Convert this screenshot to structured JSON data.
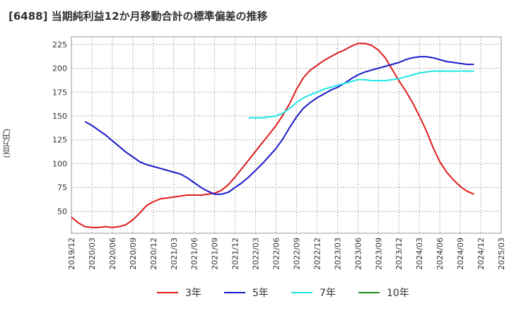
{
  "chart_data": {
    "type": "line",
    "title": "[6488]  当期純利益12か月移動合計の標準偏差の推移",
    "ylabel": "(百万円)",
    "xlabel": "",
    "ylim": [
      27,
      233
    ],
    "yticks": [
      50,
      75,
      100,
      125,
      150,
      175,
      200,
      225
    ],
    "xticks": [
      "2019/12",
      "2020/03",
      "2020/06",
      "2020/09",
      "2020/12",
      "2021/03",
      "2021/06",
      "2021/09",
      "2021/12",
      "2022/03",
      "2022/06",
      "2022/09",
      "2022/12",
      "2023/03",
      "2023/06",
      "2023/09",
      "2023/12",
      "2024/03",
      "2024/06",
      "2024/09",
      "2024/12",
      "2025/03"
    ],
    "grid": true,
    "legend_position": "bottom",
    "series": [
      {
        "name": "3年",
        "color": "#dd1c1c",
        "points": [
          [
            0,
            44
          ],
          [
            1,
            38
          ],
          [
            2,
            34
          ],
          [
            3,
            33
          ],
          [
            4,
            33
          ],
          [
            5,
            34
          ],
          [
            6,
            33
          ],
          [
            7,
            34
          ],
          [
            8,
            36
          ],
          [
            9,
            41
          ],
          [
            10,
            48
          ],
          [
            11,
            56
          ],
          [
            12,
            60
          ],
          [
            13,
            63
          ],
          [
            14,
            64
          ],
          [
            15,
            65
          ],
          [
            16,
            66
          ],
          [
            17,
            67
          ],
          [
            18,
            67
          ],
          [
            19,
            67
          ],
          [
            20,
            68
          ],
          [
            21,
            69
          ],
          [
            22,
            72
          ],
          [
            23,
            78
          ],
          [
            24,
            86
          ],
          [
            25,
            95
          ],
          [
            26,
            104
          ],
          [
            27,
            113
          ],
          [
            28,
            122
          ],
          [
            29,
            131
          ],
          [
            30,
            140
          ],
          [
            31,
            151
          ],
          [
            32,
            163
          ],
          [
            33,
            178
          ],
          [
            34,
            190
          ],
          [
            35,
            198
          ],
          [
            36,
            203
          ],
          [
            37,
            208
          ],
          [
            38,
            212
          ],
          [
            39,
            216
          ],
          [
            40,
            219
          ],
          [
            41,
            223
          ],
          [
            42,
            226
          ],
          [
            43,
            226
          ],
          [
            44,
            224
          ],
          [
            45,
            219
          ],
          [
            46,
            211
          ],
          [
            47,
            199
          ],
          [
            48,
            187
          ],
          [
            49,
            176
          ],
          [
            50,
            164
          ],
          [
            51,
            150
          ],
          [
            52,
            135
          ],
          [
            53,
            117
          ],
          [
            54,
            102
          ],
          [
            55,
            91
          ],
          [
            56,
            83
          ],
          [
            57,
            76
          ],
          [
            58,
            71
          ],
          [
            59,
            68
          ]
        ]
      },
      {
        "name": "5年",
        "color": "#1919c8",
        "points": [
          [
            2,
            144
          ],
          [
            3,
            140
          ],
          [
            4,
            135
          ],
          [
            5,
            130
          ],
          [
            6,
            124
          ],
          [
            7,
            118
          ],
          [
            8,
            112
          ],
          [
            9,
            107
          ],
          [
            10,
            102
          ],
          [
            11,
            99
          ],
          [
            12,
            97
          ],
          [
            13,
            95
          ],
          [
            14,
            93
          ],
          [
            15,
            91
          ],
          [
            16,
            89
          ],
          [
            17,
            85
          ],
          [
            18,
            80
          ],
          [
            19,
            75
          ],
          [
            20,
            71
          ],
          [
            21,
            68
          ],
          [
            22,
            68
          ],
          [
            23,
            70
          ],
          [
            24,
            75
          ],
          [
            25,
            80
          ],
          [
            26,
            86
          ],
          [
            27,
            93
          ],
          [
            28,
            100
          ],
          [
            29,
            108
          ],
          [
            30,
            116
          ],
          [
            31,
            126
          ],
          [
            32,
            138
          ],
          [
            33,
            149
          ],
          [
            34,
            158
          ],
          [
            35,
            164
          ],
          [
            36,
            169
          ],
          [
            37,
            173
          ],
          [
            38,
            177
          ],
          [
            39,
            180
          ],
          [
            40,
            184
          ],
          [
            41,
            189
          ],
          [
            42,
            193
          ],
          [
            43,
            196
          ],
          [
            44,
            198
          ],
          [
            45,
            200
          ],
          [
            46,
            202
          ],
          [
            47,
            204
          ],
          [
            48,
            206
          ],
          [
            49,
            209
          ],
          [
            50,
            211
          ],
          [
            51,
            212
          ],
          [
            52,
            212
          ],
          [
            53,
            211
          ],
          [
            54,
            209
          ],
          [
            55,
            207
          ],
          [
            56,
            206
          ],
          [
            57,
            205
          ],
          [
            58,
            204
          ],
          [
            59,
            204
          ]
        ]
      },
      {
        "name": "7年",
        "color": "#1ee6e6",
        "points": [
          [
            26,
            148
          ],
          [
            27,
            148
          ],
          [
            28,
            148
          ],
          [
            29,
            149
          ],
          [
            30,
            150
          ],
          [
            31,
            153
          ],
          [
            32,
            158
          ],
          [
            33,
            164
          ],
          [
            34,
            169
          ],
          [
            35,
            172
          ],
          [
            36,
            175
          ],
          [
            37,
            178
          ],
          [
            38,
            180
          ],
          [
            39,
            182
          ],
          [
            40,
            184
          ],
          [
            41,
            186
          ],
          [
            42,
            188
          ],
          [
            43,
            188
          ],
          [
            44,
            187
          ],
          [
            45,
            187
          ],
          [
            46,
            187
          ],
          [
            47,
            188
          ],
          [
            48,
            189
          ],
          [
            49,
            191
          ],
          [
            50,
            193
          ],
          [
            51,
            195
          ],
          [
            52,
            196
          ],
          [
            53,
            197
          ],
          [
            54,
            197
          ],
          [
            55,
            197
          ],
          [
            56,
            197
          ],
          [
            57,
            197
          ],
          [
            58,
            197
          ],
          [
            59,
            197
          ]
        ]
      },
      {
        "name": "10年",
        "color": "#1e8c1e",
        "points": []
      }
    ]
  }
}
